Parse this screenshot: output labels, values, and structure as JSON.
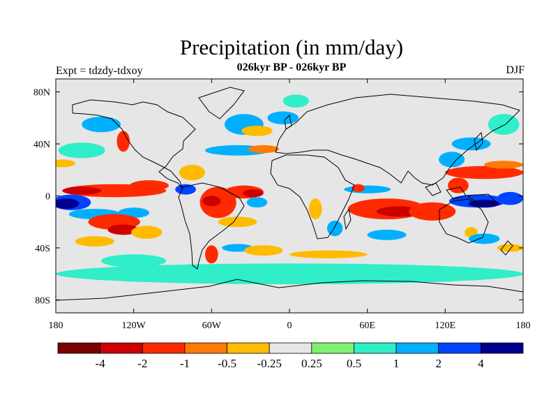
{
  "header": {
    "title": "Precipitation (in mm/day)",
    "subtitle": "026kyr BP - 026kyr BP",
    "experiment": "Expt = tdzdy-tdxoy",
    "season": "DJF"
  },
  "chart_data": {
    "type": "heatmap",
    "title": "Precipitation (in mm/day)",
    "subtitle": "026kyr BP - 026kyr BP",
    "variable": "precipitation anomaly",
    "units": "mm/day",
    "lon_range": [
      -180,
      180
    ],
    "lat_range": [
      -90,
      90
    ],
    "x_ticks": [
      "180",
      "120W",
      "60W",
      "0",
      "60E",
      "120E",
      "180"
    ],
    "x_tick_values": [
      -180,
      -120,
      -60,
      0,
      60,
      120,
      180
    ],
    "y_ticks": [
      "80N",
      "40N",
      "0",
      "40S",
      "80S"
    ],
    "y_tick_values": [
      80,
      40,
      0,
      -40,
      -80
    ],
    "colorbar": {
      "colors": [
        "#7a0000",
        "#cc0000",
        "#ff2a00",
        "#ff7a00",
        "#ffbb00",
        "#e6e6e6",
        "#80f070",
        "#30eec8",
        "#00b0ff",
        "#0044ff",
        "#000090"
      ],
      "labels": [
        "-4",
        "-2",
        "-1",
        "-0.5",
        "-0.25",
        "0.25",
        "0.5",
        "1",
        "2",
        "4"
      ],
      "levels": [
        -4,
        -2,
        -1,
        -0.5,
        -0.25,
        0.25,
        0.5,
        1,
        2,
        4
      ]
    },
    "anomaly_blobs": [
      {
        "lon": -135,
        "lat": 4,
        "rlon": 40,
        "rlat": 5,
        "level": -2
      },
      {
        "lon": -160,
        "lat": 4,
        "rlon": 15,
        "rlat": 3,
        "level": -4
      },
      {
        "lon": -108,
        "lat": 8,
        "rlon": 15,
        "rlat": 4,
        "level": -2
      },
      {
        "lon": -168,
        "lat": -5,
        "rlon": 15,
        "rlat": 6,
        "level": 2
      },
      {
        "lon": -172,
        "lat": -6,
        "rlon": 10,
        "rlat": 4,
        "level": 4
      },
      {
        "lon": -150,
        "lat": -14,
        "rlon": 20,
        "rlat": 4,
        "level": 1
      },
      {
        "lon": -120,
        "lat": -13,
        "rlon": 12,
        "rlat": 4,
        "level": 1
      },
      {
        "lon": -135,
        "lat": -20,
        "rlon": 20,
        "rlat": 6,
        "level": -2
      },
      {
        "lon": -128,
        "lat": -26,
        "rlon": 12,
        "rlat": 4,
        "level": -4
      },
      {
        "lon": -110,
        "lat": -28,
        "rlon": 12,
        "rlat": 5,
        "level": -0.5
      },
      {
        "lon": -55,
        "lat": -5,
        "rlon": 14,
        "rlat": 12,
        "level": -2
      },
      {
        "lon": -60,
        "lat": -4,
        "rlon": 7,
        "rlat": 4,
        "level": -4
      },
      {
        "lon": -35,
        "lat": 3,
        "rlon": 15,
        "rlat": 5,
        "level": -2
      },
      {
        "lon": -28,
        "lat": 2,
        "rlon": 8,
        "rlat": 3,
        "level": -4
      },
      {
        "lon": -80,
        "lat": 5,
        "rlon": 8,
        "rlat": 4,
        "level": 2
      },
      {
        "lon": -75,
        "lat": 18,
        "rlon": 10,
        "rlat": 6,
        "level": -0.5
      },
      {
        "lon": -40,
        "lat": -20,
        "rlon": 15,
        "rlat": 4,
        "level": -0.5
      },
      {
        "lon": -25,
        "lat": -5,
        "rlon": 8,
        "rlat": 4,
        "level": 1
      },
      {
        "lon": -175,
        "lat": 25,
        "rlon": 10,
        "rlat": 3,
        "level": -0.5
      },
      {
        "lon": -160,
        "lat": 35,
        "rlon": 18,
        "rlat": 6,
        "level": 0.5
      },
      {
        "lon": -128,
        "lat": 42,
        "rlon": 5,
        "rlat": 8,
        "level": -2
      },
      {
        "lon": -145,
        "lat": 55,
        "rlon": 15,
        "rlat": 6,
        "level": 1
      },
      {
        "lon": -40,
        "lat": 35,
        "rlon": 25,
        "rlat": 4,
        "level": 1
      },
      {
        "lon": -20,
        "lat": 36,
        "rlon": 12,
        "rlat": 3,
        "level": -1
      },
      {
        "lon": -35,
        "lat": 55,
        "rlon": 15,
        "rlat": 8,
        "level": 1
      },
      {
        "lon": -25,
        "lat": 50,
        "rlon": 12,
        "rlat": 4,
        "level": -0.5
      },
      {
        "lon": -5,
        "lat": 60,
        "rlon": 12,
        "rlat": 5,
        "level": 1
      },
      {
        "lon": 5,
        "lat": 73,
        "rlon": 10,
        "rlat": 5,
        "level": 0.5
      },
      {
        "lon": -60,
        "lat": -45,
        "rlon": 5,
        "rlat": 7,
        "level": -2
      },
      {
        "lon": -40,
        "lat": -40,
        "rlon": 12,
        "rlat": 3,
        "level": 1
      },
      {
        "lon": -20,
        "lat": -42,
        "rlon": 15,
        "rlat": 4,
        "level": -0.5
      },
      {
        "lon": 20,
        "lat": -10,
        "rlon": 5,
        "rlat": 8,
        "level": -0.5
      },
      {
        "lon": 35,
        "lat": -25,
        "rlon": 6,
        "rlat": 6,
        "level": 1
      },
      {
        "lon": 75,
        "lat": -10,
        "rlon": 30,
        "rlat": 8,
        "level": -2
      },
      {
        "lon": 85,
        "lat": -12,
        "rlon": 18,
        "rlat": 4,
        "level": -4
      },
      {
        "lon": 110,
        "lat": -12,
        "rlon": 18,
        "rlat": 7,
        "level": -2
      },
      {
        "lon": 60,
        "lat": 5,
        "rlon": 18,
        "rlat": 3,
        "level": 1
      },
      {
        "lon": 53,
        "lat": 6,
        "rlon": 5,
        "rlat": 3,
        "level": -2
      },
      {
        "lon": 75,
        "lat": -30,
        "rlon": 15,
        "rlat": 4,
        "level": 1
      },
      {
        "lon": 145,
        "lat": -4,
        "rlon": 22,
        "rlat": 5,
        "level": 2
      },
      {
        "lon": 150,
        "lat": -6,
        "rlon": 12,
        "rlat": 3,
        "level": 4
      },
      {
        "lon": 170,
        "lat": -2,
        "rlon": 10,
        "rlat": 5,
        "level": 2
      },
      {
        "lon": 130,
        "lat": 8,
        "rlon": 8,
        "rlat": 6,
        "level": -2
      },
      {
        "lon": 150,
        "lat": 18,
        "rlon": 30,
        "rlat": 5,
        "level": -2
      },
      {
        "lon": 165,
        "lat": 24,
        "rlon": 15,
        "rlat": 3,
        "level": -1
      },
      {
        "lon": 125,
        "lat": 28,
        "rlon": 10,
        "rlat": 6,
        "level": 1
      },
      {
        "lon": 140,
        "lat": 40,
        "rlon": 15,
        "rlat": 5,
        "level": 1
      },
      {
        "lon": 165,
        "lat": 55,
        "rlon": 12,
        "rlat": 8,
        "level": 0.5
      },
      {
        "lon": 140,
        "lat": -28,
        "rlon": 5,
        "rlat": 4,
        "level": -0.5
      },
      {
        "lon": 150,
        "lat": -33,
        "rlon": 12,
        "rlat": 4,
        "level": 1
      },
      {
        "lon": 170,
        "lat": -40,
        "rlon": 10,
        "rlat": 3,
        "level": -0.5
      },
      {
        "lon": 0,
        "lat": -60,
        "rlon": 180,
        "rlat": 8,
        "level": 0.5
      },
      {
        "lon": -120,
        "lat": -50,
        "rlon": 25,
        "rlat": 5,
        "level": 0.5
      },
      {
        "lon": -150,
        "lat": -35,
        "rlon": 15,
        "rlat": 4,
        "level": -0.5
      },
      {
        "lon": 30,
        "lat": -45,
        "rlon": 30,
        "rlat": 3,
        "level": -0.5
      }
    ]
  }
}
